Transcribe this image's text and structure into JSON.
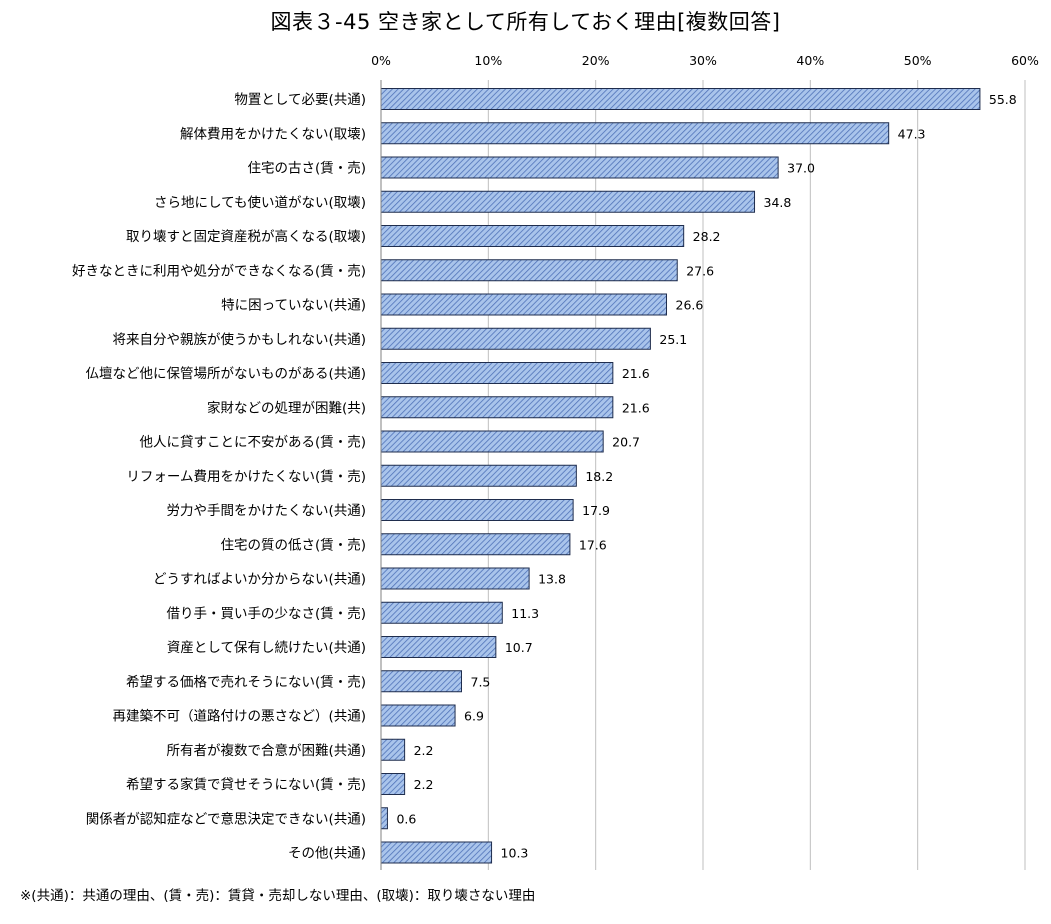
{
  "title": "図表３-45 空き家として所有しておく理由[複数回答]",
  "footnote": "※(共通)：共通の理由、(賃・売)：賃貸・売却しない理由、(取壊)：取り壊さない理由",
  "chart_data": {
    "type": "bar",
    "orientation": "horizontal",
    "title": "図表３-45 空き家として所有しておく理由[複数回答]",
    "xlabel": "",
    "ylabel": "",
    "xlim": [
      0,
      60
    ],
    "ticks": [
      0,
      10,
      20,
      30,
      40,
      50,
      60
    ],
    "tick_labels": [
      "0%",
      "10%",
      "20%",
      "30%",
      "40%",
      "50%",
      "60%"
    ],
    "axis_position": "top",
    "grid": true,
    "legend": "none",
    "colors": {
      "bar_fill": "#a9c4eb",
      "bar_hatch": "#4f72b8",
      "bar_edge": "#1f2d4d",
      "grid": "#bfbfbf",
      "axis": "#808080"
    },
    "categories": [
      "物置として必要(共通)",
      "解体費用をかけたくない(取壊)",
      "住宅の古さ(賃・売)",
      "さら地にしても使い道がない(取壊)",
      "取り壊すと固定資産税が高くなる(取壊)",
      "好きなときに利用や処分ができなくなる(賃・売)",
      "特に困っていない(共通)",
      "将来自分や親族が使うかもしれない(共通)",
      "仏壇など他に保管場所がないものがある(共通)",
      "家財などの処理が困難(共)",
      "他人に貸すことに不安がある(賃・売)",
      "リフォーム費用をかけたくない(賃・売)",
      "労力や手間をかけたくない(共通)",
      "住宅の質の低さ(賃・売)",
      "どうすればよいか分からない(共通)",
      "借り手・買い手の少なさ(賃・売)",
      "資産として保有し続けたい(共通)",
      "希望する価格で売れそうにない(賃・売)",
      "再建築不可（道路付けの悪さなど）(共通)",
      "所有者が複数で合意が困難(共通)",
      "希望する家賃で貸せそうにない(賃・売)",
      "関係者が認知症などで意思決定できない(共通)",
      "その他(共通)"
    ],
    "values": [
      55.8,
      47.3,
      37.0,
      34.8,
      28.2,
      27.6,
      26.6,
      25.1,
      21.6,
      21.6,
      20.7,
      18.2,
      17.9,
      17.6,
      13.8,
      11.3,
      10.7,
      7.5,
      6.9,
      2.2,
      2.2,
      0.6,
      10.3
    ],
    "value_labels": [
      "55.8",
      "47.3",
      "37.0",
      "34.8",
      "28.2",
      "27.6",
      "26.6",
      "25.1",
      "21.6",
      "21.6",
      "20.7",
      "18.2",
      "17.9",
      "17.6",
      "13.8",
      "11.3",
      "10.7",
      "7.5",
      "6.9",
      "2.2",
      "2.2",
      "0.6",
      "10.3"
    ]
  }
}
